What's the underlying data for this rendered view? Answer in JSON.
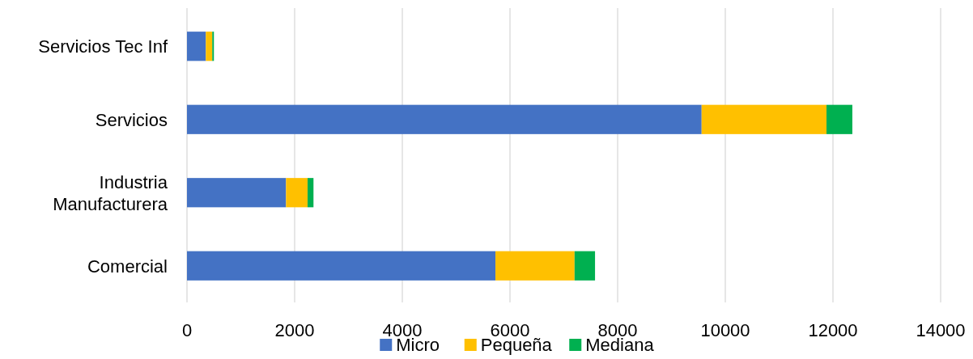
{
  "chart_data": {
    "type": "bar",
    "orientation": "horizontal",
    "stacked": true,
    "categories": [
      "Servicios Tec Inf",
      "Servicios",
      "Industria\nManufacturera",
      "Comercial"
    ],
    "series": [
      {
        "name": "Micro",
        "color": "#4472c4",
        "values": [
          350,
          9560,
          1840,
          5730
        ]
      },
      {
        "name": "Pequeña",
        "color": "#ffc000",
        "values": [
          120,
          2320,
          400,
          1470
        ]
      },
      {
        "name": "Mediana",
        "color": "#00b050",
        "values": [
          30,
          480,
          110,
          380
        ]
      }
    ],
    "xlim": [
      0,
      14000
    ],
    "xticks": [
      0,
      2000,
      4000,
      6000,
      8000,
      10000,
      12000,
      14000
    ],
    "grid": "x",
    "legend": "bottom"
  }
}
